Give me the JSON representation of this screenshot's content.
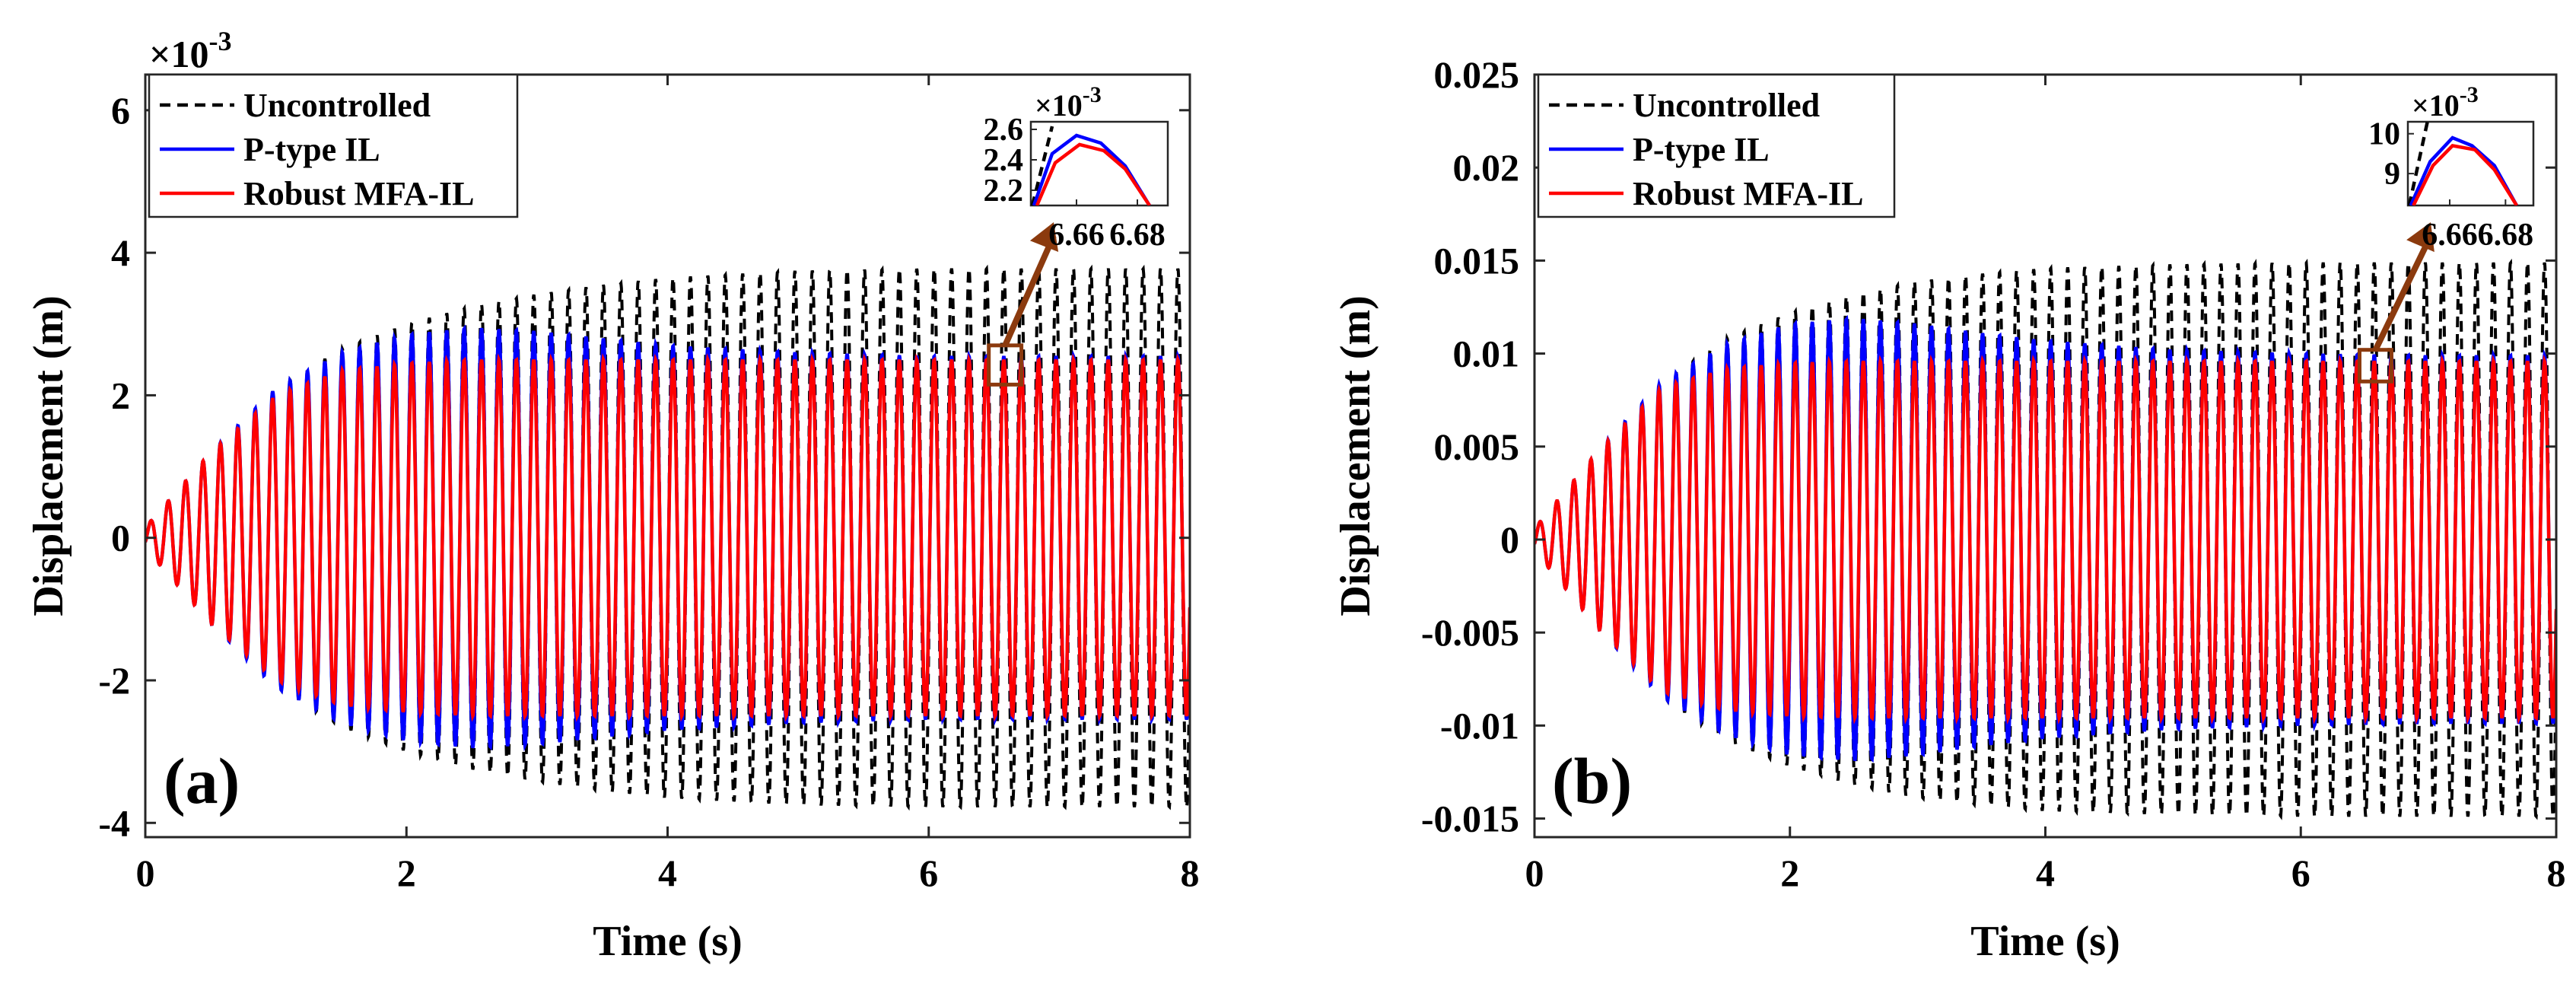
{
  "figure": "two-panel displacement response comparison",
  "chart_data": [
    {
      "type": "line",
      "panel_label": "(a)",
      "xlabel": "Time (s)",
      "ylabel": "Displacement (m)",
      "xlim": [
        0,
        8
      ],
      "ylim": [
        -4.2,
        6.5
      ],
      "y_exponent_label": "×10",
      "y_exponent_power": "-3",
      "xticks": [
        0,
        2,
        4,
        6,
        8
      ],
      "xtick_labels": [
        "0",
        "2",
        "4",
        "6",
        "8"
      ],
      "yticks": [
        -4,
        -2,
        0,
        2,
        4,
        6
      ],
      "ytick_labels": [
        "-4",
        "-2",
        "0",
        "2",
        "4",
        "6"
      ],
      "grid": false,
      "legend_position": "top-left",
      "oscillation_frequency_hz": 7.5,
      "series": [
        {
          "name": "Uncontrolled",
          "color": "#000000",
          "style": "dashed",
          "envelope": {
            "t": [
              0,
              0.5,
              1,
              1.5,
              2,
              2.5,
              3,
              3.5,
              4,
              5,
              6,
              7,
              8
            ],
            "amp": [
              0.15,
              1.2,
              2.1,
              2.65,
              3.0,
              3.25,
              3.42,
              3.55,
              3.65,
              3.75,
              3.78,
              3.78,
              3.78
            ]
          }
        },
        {
          "name": "P-type IL",
          "color": "#0000ff",
          "style": "solid",
          "envelope": {
            "t": [
              0,
              0.5,
              1,
              1.5,
              2,
              2.5,
              3,
              3.5,
              4,
              5,
              6,
              7,
              8
            ],
            "amp": [
              0.15,
              1.2,
              2.1,
              2.6,
              2.85,
              2.95,
              2.9,
              2.8,
              2.7,
              2.6,
              2.55,
              2.55,
              2.55
            ]
          }
        },
        {
          "name": "Robust MFA-IL",
          "color": "#ff0000",
          "style": "solid",
          "envelope": {
            "t": [
              0,
              0.5,
              1,
              1.5,
              2,
              2.5,
              3,
              3.5,
              4,
              5,
              6,
              7,
              8
            ],
            "amp": [
              0.15,
              1.2,
              2.0,
              2.35,
              2.45,
              2.5,
              2.5,
              2.5,
              2.5,
              2.5,
              2.5,
              2.5,
              2.5
            ]
          }
        }
      ],
      "zoom_box": {
        "t": [
          6.46,
          6.71
        ],
        "y": [
          2.15,
          2.7
        ]
      },
      "inset": {
        "xlim": [
          6.645,
          6.69
        ],
        "ylim": [
          2.1,
          2.65
        ],
        "xticks": [
          6.66,
          6.68
        ],
        "xtick_labels": [
          "6.66",
          "6.68"
        ],
        "yticks": [
          2.2,
          2.4,
          2.6
        ],
        "ytick_labels": [
          "2.2",
          "2.4",
          "2.6"
        ],
        "y_exponent_label": "×10",
        "y_exponent_power": "-3",
        "uncontrolled": {
          "x": [
            6.6455,
            6.652
          ],
          "y": [
            2.1,
            2.62
          ]
        },
        "p_type": {
          "x": [
            6.646,
            6.652,
            6.66,
            6.668,
            6.676,
            6.684
          ],
          "y": [
            2.1,
            2.44,
            2.56,
            2.51,
            2.36,
            2.1
          ]
        },
        "robust": {
          "x": [
            6.647,
            6.653,
            6.661,
            6.669,
            6.676,
            6.684
          ],
          "y": [
            2.1,
            2.38,
            2.5,
            2.46,
            2.34,
            2.1
          ]
        }
      }
    },
    {
      "type": "line",
      "panel_label": "(b)",
      "xlabel": "Time (s)",
      "ylabel": "Displacement (m)",
      "xlim": [
        0,
        8
      ],
      "ylim": [
        -0.016,
        0.025
      ],
      "xticks": [
        0,
        2,
        4,
        6,
        8
      ],
      "xtick_labels": [
        "0",
        "2",
        "4",
        "6",
        "8"
      ],
      "yticks": [
        -0.015,
        -0.01,
        -0.005,
        0,
        0.005,
        0.01,
        0.015,
        0.02,
        0.025
      ],
      "ytick_labels": [
        "-0.015",
        "-0.01",
        "-0.005",
        "0",
        "0.005",
        "0.01",
        "0.015",
        "0.02",
        "0.025"
      ],
      "grid": false,
      "legend_position": "top-left",
      "oscillation_frequency_hz": 7.5,
      "series": [
        {
          "name": "Uncontrolled",
          "color": "#000000",
          "style": "dashed",
          "envelope": {
            "t": [
              0,
              0.5,
              1,
              1.5,
              2,
              2.5,
              3,
              3.5,
              4,
              5,
              6,
              7,
              8
            ],
            "amp": [
              0.0006,
              0.0048,
              0.0085,
              0.0108,
              0.0122,
              0.0132,
              0.0139,
              0.0143,
              0.0146,
              0.0148,
              0.0149,
              0.0149,
              0.0149
            ]
          }
        },
        {
          "name": "P-type IL",
          "color": "#0000ff",
          "style": "solid",
          "envelope": {
            "t": [
              0,
              0.5,
              1,
              1.5,
              2,
              2.5,
              3,
              3.5,
              4,
              5,
              6,
              7,
              8
            ],
            "amp": [
              0.0006,
              0.0048,
              0.0085,
              0.0105,
              0.0116,
              0.0119,
              0.0116,
              0.0111,
              0.0107,
              0.0102,
              0.01,
              0.0099,
              0.0099
            ]
          }
        },
        {
          "name": "Robust MFA-IL",
          "color": "#ff0000",
          "style": "solid",
          "envelope": {
            "t": [
              0,
              0.5,
              1,
              1.5,
              2,
              2.5,
              3,
              3.5,
              4,
              5,
              6,
              7,
              8
            ],
            "amp": [
              0.0006,
              0.0048,
              0.0082,
              0.0092,
              0.0095,
              0.0096,
              0.0096,
              0.0096,
              0.0096,
              0.0096,
              0.0096,
              0.0096,
              0.0096
            ]
          }
        }
      ],
      "zoom_box": {
        "t": [
          6.46,
          6.71
        ],
        "y": [
          0.0085,
          0.0102
        ]
      },
      "inset": {
        "xlim": [
          6.645,
          6.69
        ],
        "ylim": [
          0.0082,
          0.0103
        ],
        "xticks": [
          6.66,
          6.68
        ],
        "xtick_labels": [
          "6.66",
          "6.68"
        ],
        "yticks": [
          0.009,
          0.01
        ],
        "ytick_labels": [
          "9",
          "10"
        ],
        "y_exponent_label": "×10",
        "y_exponent_power": "-3",
        "uncontrolled": {
          "x": [
            6.6455,
            6.652
          ],
          "y": [
            0.0082,
            0.0103
          ]
        },
        "p_type": {
          "x": [
            6.646,
            6.653,
            6.661,
            6.668,
            6.676,
            6.684
          ],
          "y": [
            0.0082,
            0.0093,
            0.0099,
            0.0097,
            0.0092,
            0.0082
          ]
        },
        "robust": {
          "x": [
            6.647,
            6.654,
            6.661,
            6.669,
            6.676,
            6.684
          ],
          "y": [
            0.0082,
            0.0092,
            0.0097,
            0.0096,
            0.0091,
            0.0082
          ]
        }
      }
    }
  ]
}
